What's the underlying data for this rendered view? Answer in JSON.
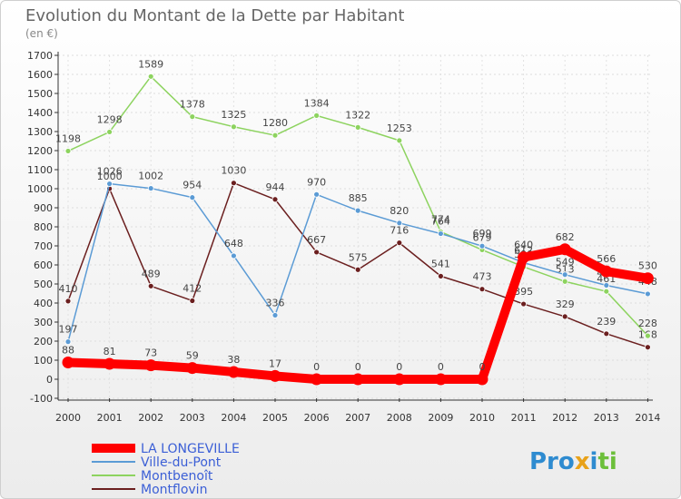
{
  "header": {
    "title": "Evolution du Montant de la Dette par Habitant",
    "subtitle": "(en €)"
  },
  "logo": {
    "text": "Proxiti"
  },
  "chart_data": {
    "type": "line",
    "title": "Evolution du Montant de la Dette par Habitant",
    "subtitle": "(en €)",
    "xlabel": "",
    "ylabel": "",
    "x": [
      "2000",
      "2001",
      "2002",
      "2003",
      "2004",
      "2005",
      "2006",
      "2007",
      "2008",
      "2009",
      "2010",
      "2011",
      "2012",
      "2013",
      "2014"
    ],
    "ylim": [
      -100,
      1700
    ],
    "yticks": [
      "-100",
      "0",
      "100",
      "200",
      "300",
      "400",
      "500",
      "600",
      "700",
      "800",
      "900",
      "1000",
      "1100",
      "1200",
      "1300",
      "1400",
      "1500",
      "1600",
      "1700"
    ],
    "grid": true,
    "legend_position": "bottom-left",
    "series": [
      {
        "name": "LA LONGEVILLE",
        "color": "#ff0000",
        "values": [
          88,
          81,
          73,
          59,
          38,
          17,
          0,
          0,
          0,
          0,
          0,
          640,
          682,
          566,
          530
        ],
        "labels": [
          "88",
          "81",
          "73",
          "59",
          "38",
          "17",
          "0",
          "0",
          "0",
          "0",
          "0",
          "640",
          "682",
          "566",
          "530"
        ]
      },
      {
        "name": "Ville-du-Pont",
        "color": "#5b9bd5",
        "values": [
          197,
          1026,
          1002,
          954,
          648,
          336,
          970,
          885,
          820,
          764,
          699,
          612,
          549,
          493,
          448
        ],
        "labels": [
          "197",
          "1026",
          "1002",
          "954",
          "648",
          "336",
          "970",
          "885",
          "820",
          "764",
          "699",
          "612",
          "549",
          "493",
          "448"
        ]
      },
      {
        "name": "Montbenoît",
        "color": "#8dd35f",
        "values": [
          1198,
          1298,
          1589,
          1378,
          1325,
          1280,
          1384,
          1322,
          1253,
          774,
          679,
          590,
          513,
          461,
          228
        ],
        "labels": [
          "1198",
          "1298",
          "1589",
          "1378",
          "1325",
          "1280",
          "1384",
          "1322",
          "1253",
          "774",
          "679",
          "590",
          "513",
          "461",
          "228"
        ]
      },
      {
        "name": "Montflovin",
        "color": "#6b1f1f",
        "values": [
          410,
          1000,
          489,
          412,
          1030,
          944,
          667,
          575,
          716,
          541,
          473,
          395,
          329,
          239,
          168
        ],
        "labels": [
          "410",
          "1000",
          "489",
          "412",
          "1030",
          "944",
          "667",
          "575",
          "716",
          "541",
          "473",
          "395",
          "329",
          "239",
          "168"
        ]
      }
    ]
  }
}
